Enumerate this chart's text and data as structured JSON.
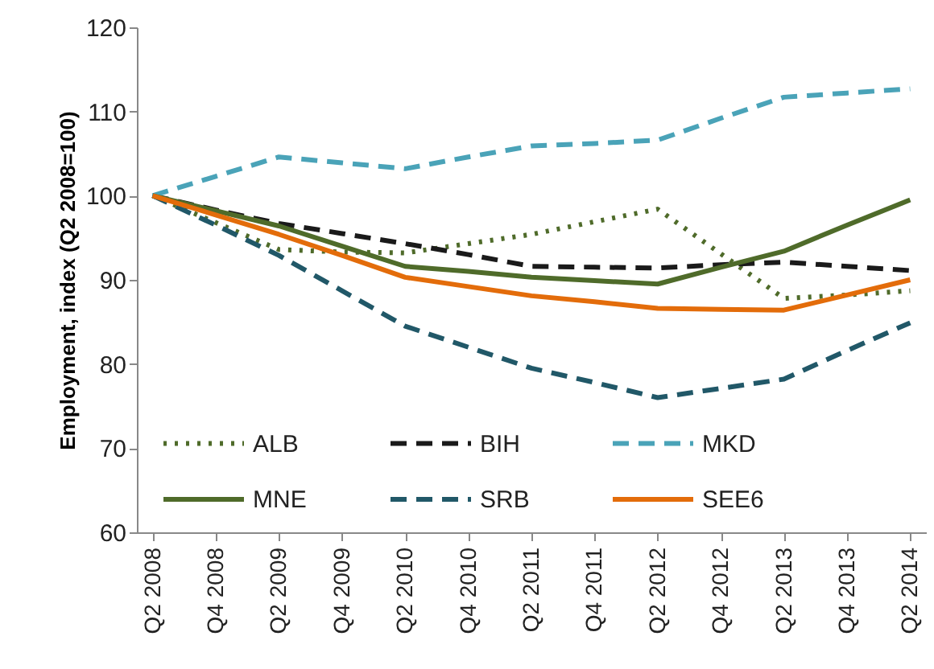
{
  "chart_data": {
    "type": "line",
    "ylabel": "Employment, index (Q2 2008=100)",
    "categories": [
      "Q2 2008",
      "Q4 2008",
      "Q2 2009",
      "Q4 2009",
      "Q2 2010",
      "Q4 2010",
      "Q2 2011",
      "Q4 2011",
      "Q2 2012",
      "Q4 2012",
      "Q2 2013",
      "Q4 2013",
      "Q2 2014"
    ],
    "series": [
      {
        "name": "ALB",
        "color": "#4f6b2a",
        "line_style": "dotted",
        "values": [
          100,
          96.8,
          93.6,
          93.3,
          93.2,
          94.3,
          95.4,
          96.9,
          98.4,
          93.1,
          87.8,
          88.2,
          88.7
        ]
      },
      {
        "name": "BIH",
        "color": "#1a1a1a",
        "line_style": "dashed",
        "values": [
          100,
          98.3,
          96.7,
          95.5,
          94.3,
          93.0,
          91.6,
          91.5,
          91.4,
          91.8,
          92.1,
          91.6,
          91.1
        ]
      },
      {
        "name": "MKD",
        "color": "#4aa3b8",
        "line_style": "dashed",
        "values": [
          100,
          102.3,
          104.6,
          103.9,
          103.2,
          104.6,
          105.9,
          106.2,
          106.6,
          109.2,
          111.7,
          112.2,
          112.7
        ]
      },
      {
        "name": "MNE",
        "color": "#4f6b2a",
        "line_style": "solid",
        "values": [
          100,
          98.2,
          96.4,
          94.0,
          91.6,
          91.0,
          90.3,
          89.9,
          89.5,
          91.5,
          93.4,
          96.5,
          99.5
        ]
      },
      {
        "name": "SRB",
        "color": "#215868",
        "line_style": "dashed",
        "values": [
          100,
          96.5,
          92.9,
          88.7,
          84.5,
          82.0,
          79.5,
          77.8,
          76.0,
          77.1,
          78.2,
          81.6,
          84.9
        ]
      },
      {
        "name": "SEE6",
        "color": "#e36c0a",
        "line_style": "solid",
        "values": [
          100,
          97.7,
          95.4,
          92.9,
          90.3,
          89.2,
          88.1,
          87.4,
          86.6,
          86.5,
          86.4,
          88.2,
          90.0
        ]
      }
    ],
    "ylim": [
      60,
      120
    ],
    "yticks": [
      60,
      70,
      80,
      90,
      100,
      110,
      120
    ],
    "legend": "bottom",
    "grid": false
  }
}
